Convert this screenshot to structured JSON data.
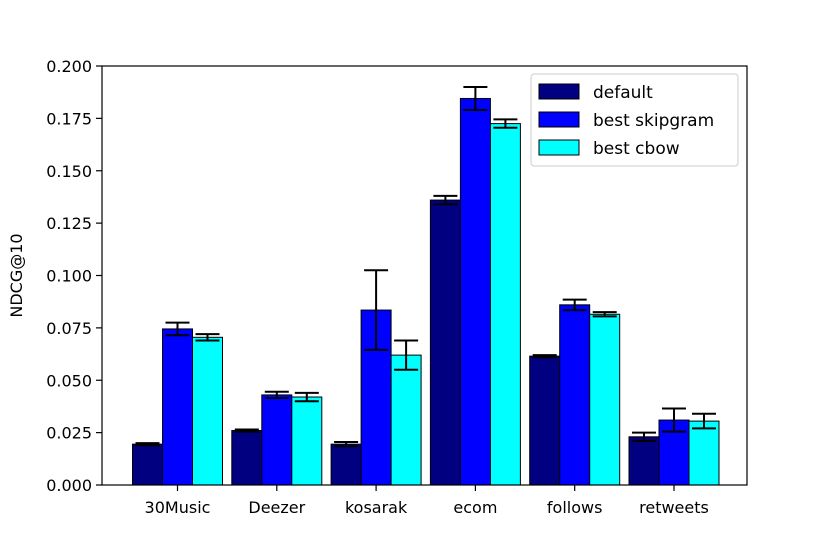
{
  "chart_data": {
    "type": "bar",
    "title": "",
    "xlabel": "",
    "ylabel": "NDCG@10",
    "ylim": [
      0,
      0.2
    ],
    "yticks": [
      "0.000",
      "0.025",
      "0.050",
      "0.075",
      "0.100",
      "0.125",
      "0.150",
      "0.175",
      "0.200"
    ],
    "categories": [
      "30Music",
      "Deezer",
      "kosarak",
      "ecom",
      "follows",
      "retweets"
    ],
    "grid": false,
    "legend_position": "top-right",
    "series": [
      {
        "name": "default",
        "color": "#000080",
        "values": [
          0.0195,
          0.026,
          0.0195,
          0.136,
          0.0615,
          0.023
        ],
        "errors": [
          0.0005,
          0.0005,
          0.001,
          0.002,
          0.0005,
          0.002
        ]
      },
      {
        "name": "best skipgram",
        "color": "#0000ff",
        "values": [
          0.0745,
          0.043,
          0.0835,
          0.1845,
          0.086,
          0.031
        ],
        "errors": [
          0.003,
          0.0015,
          0.019,
          0.0055,
          0.0025,
          0.0055
        ]
      },
      {
        "name": "best cbow",
        "color": "#00ffff",
        "values": [
          0.0705,
          0.042,
          0.062,
          0.1725,
          0.0815,
          0.0305
        ],
        "errors": [
          0.0015,
          0.002,
          0.007,
          0.002,
          0.001,
          0.0035
        ]
      }
    ]
  }
}
